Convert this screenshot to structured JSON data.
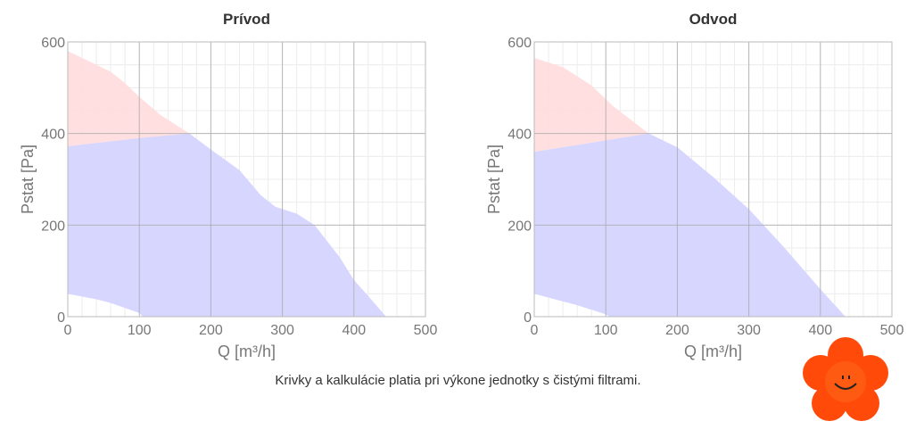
{
  "chart_data": [
    {
      "type": "area",
      "title": "Prívod",
      "xlabel": "Q [m³/h]",
      "ylabel": "Pstat [Pa]",
      "xlim": [
        0,
        500
      ],
      "ylim": [
        0,
        600
      ],
      "xticks": [
        "0",
        "100",
        "200",
        "300",
        "400",
        "500"
      ],
      "yticks": [
        "0",
        "200",
        "400",
        "600"
      ],
      "grid": true,
      "series": [
        {
          "name": "red-zone",
          "color": "#ffdddd",
          "points": [
            [
              0,
              580
            ],
            [
              40,
              550
            ],
            [
              60,
              535
            ],
            [
              80,
              510
            ],
            [
              100,
              480
            ],
            [
              130,
              440
            ],
            [
              170,
              400
            ],
            [
              100,
              390
            ],
            [
              0,
              372
            ]
          ]
        },
        {
          "name": "blue-zone",
          "color": "#d4d4ff",
          "points": [
            [
              0,
              372
            ],
            [
              100,
              390
            ],
            [
              170,
              400
            ],
            [
              200,
              365
            ],
            [
              240,
              320
            ],
            [
              270,
              265
            ],
            [
              290,
              240
            ],
            [
              320,
              225
            ],
            [
              345,
              200
            ],
            [
              380,
              130
            ],
            [
              400,
              80
            ],
            [
              420,
              45
            ],
            [
              445,
              0
            ],
            [
              105,
              0
            ],
            [
              100,
              8
            ],
            [
              60,
              30
            ],
            [
              40,
              38
            ],
            [
              0,
              50
            ]
          ]
        }
      ]
    },
    {
      "type": "area",
      "title": "Odvod",
      "xlabel": "Q [m³/h]",
      "ylabel": "Pstat [Pa]",
      "xlim": [
        0,
        500
      ],
      "ylim": [
        0,
        600
      ],
      "xticks": [
        "0",
        "100",
        "200",
        "300",
        "400",
        "500"
      ],
      "yticks": [
        "0",
        "200",
        "400",
        "600"
      ],
      "grid": true,
      "series": [
        {
          "name": "red-zone",
          "color": "#ffdddd",
          "points": [
            [
              0,
              565
            ],
            [
              40,
              545
            ],
            [
              80,
              505
            ],
            [
              110,
              460
            ],
            [
              160,
              400
            ],
            [
              100,
              385
            ],
            [
              0,
              360
            ]
          ]
        },
        {
          "name": "blue-zone",
          "color": "#d4d4ff",
          "points": [
            [
              0,
              360
            ],
            [
              100,
              385
            ],
            [
              160,
              400
            ],
            [
              200,
              370
            ],
            [
              250,
              305
            ],
            [
              300,
              235
            ],
            [
              350,
              150
            ],
            [
              400,
              60
            ],
            [
              435,
              0
            ],
            [
              105,
              0
            ],
            [
              100,
              5
            ],
            [
              60,
              25
            ],
            [
              0,
              50
            ]
          ]
        }
      ]
    }
  ],
  "note": "Krivky a kalkulácie platia pri výkone jednotky s čistými filtrami."
}
